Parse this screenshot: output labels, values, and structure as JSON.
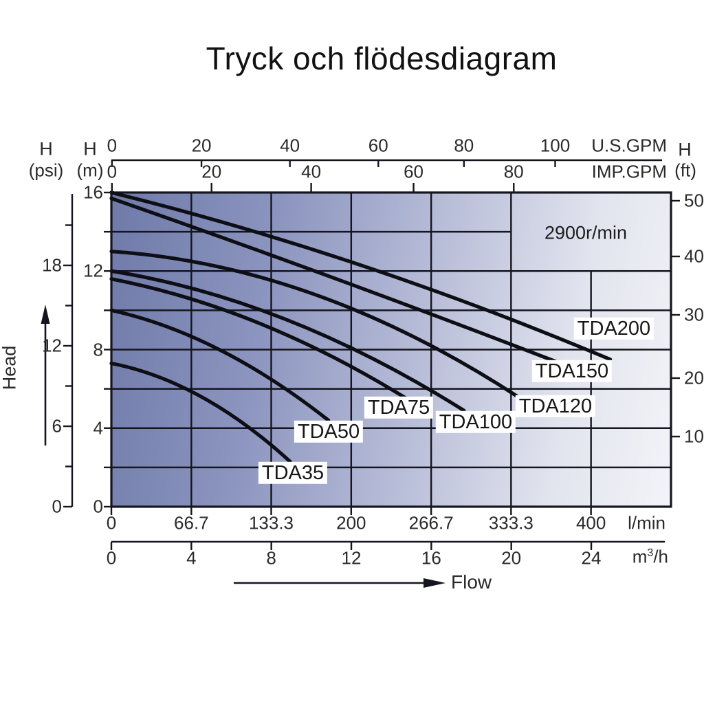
{
  "title": "Tryck och flödesdiagram",
  "annotation_rpm": "2900r/min",
  "labels": {
    "head_axis": "Head",
    "flow_axis": "Flow",
    "h_psi": "H",
    "psi_unit": "(psi)",
    "h_m": "H",
    "m_unit": "(m)",
    "h_ft": "H",
    "ft_unit": "(ft)",
    "usgpm_unit": "U.S.GPM",
    "impgpm_unit": "IMP.GPM",
    "lmin_unit": "l/min",
    "m3h_base": "m",
    "m3h_sup": "3",
    "m3h_rest": "/h"
  },
  "axes": {
    "usgpm_ticks": [
      "0",
      "20",
      "40",
      "60",
      "80",
      "100"
    ],
    "impgpm_ticks": [
      "0",
      "20",
      "40",
      "60",
      "80"
    ],
    "psi_ticks": [
      "0",
      "6",
      "12",
      "18"
    ],
    "m_ticks": [
      "0",
      "4",
      "8",
      "12",
      "16"
    ],
    "ft_ticks": [
      "10",
      "20",
      "30",
      "40",
      "50"
    ],
    "lmin_ticks": [
      "0",
      "66.7",
      "133.3",
      "200",
      "266.7",
      "333.3",
      "400"
    ],
    "m3h_ticks": [
      "0",
      "4",
      "8",
      "12",
      "16",
      "20",
      "24"
    ]
  },
  "chart_data": {
    "type": "line",
    "title": "Tryck och flödesdiagram",
    "xlabel": "Flow",
    "ylabel": "Head",
    "rpm": "2900r/min",
    "x_axis_units": [
      "U.S.GPM",
      "IMP.GPM",
      "l/min",
      "m3/h"
    ],
    "y_axis_units": [
      "psi",
      "m",
      "ft"
    ],
    "x_range_lmin": [
      0,
      466.7
    ],
    "y_range_m": [
      0,
      16
    ],
    "grid": true,
    "legend_position": "on-curve-labels",
    "series": [
      {
        "name": "TDA35",
        "points_lmin_m": [
          [
            0,
            7.3
          ],
          [
            75,
            5.6
          ],
          [
            149,
            2.3
          ]
        ]
      },
      {
        "name": "TDA50",
        "points_lmin_m": [
          [
            0,
            10.0
          ],
          [
            90,
            8.0
          ],
          [
            181,
            4.4
          ]
        ]
      },
      {
        "name": "TDA75",
        "points_lmin_m": [
          [
            0,
            11.6
          ],
          [
            125,
            9.3
          ],
          [
            249,
            5.4
          ]
        ]
      },
      {
        "name": "TDA100",
        "points_lmin_m": [
          [
            0,
            12.0
          ],
          [
            147,
            9.5
          ],
          [
            294,
            4.9
          ]
        ]
      },
      {
        "name": "TDA120",
        "points_lmin_m": [
          [
            0,
            13.0
          ],
          [
            170,
            10.8
          ],
          [
            339,
            5.6
          ]
        ]
      },
      {
        "name": "TDA150",
        "points_lmin_m": [
          [
            0,
            15.7
          ],
          [
            192,
            11.5
          ],
          [
            383,
            7.1
          ]
        ]
      },
      {
        "name": "TDA200",
        "points_lmin_m": [
          [
            0,
            16.0
          ],
          [
            208,
            12.3
          ],
          [
            416,
            7.5
          ]
        ]
      }
    ],
    "colors": {
      "curve": "#0e0e15",
      "grid": "#15151f",
      "plot_bg_gradient": [
        "#6f7aa9",
        "#8c95bf",
        "#b8bdd8",
        "#e2e4ee",
        "#f3f4f8"
      ]
    }
  }
}
